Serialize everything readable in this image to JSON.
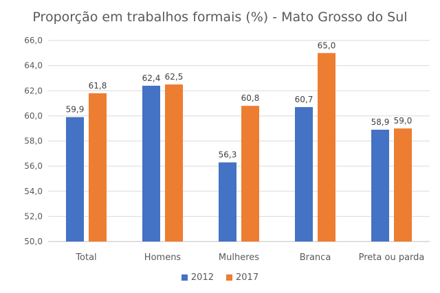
{
  "chart_data": {
    "type": "bar",
    "title": "Proporção em trabalhos formais (%) - Mato Grosso do Sul",
    "xlabel": "",
    "ylabel": "",
    "categories": [
      "Total",
      "Homens",
      "Mulheres",
      "Branca",
      "Preta ou parda"
    ],
    "series": [
      {
        "name": "2012",
        "color": "#4472C4",
        "values": [
          59.9,
          62.4,
          56.3,
          60.7,
          58.9
        ],
        "labels": [
          "59,9",
          "62,4",
          "56,3",
          "60,7",
          "58,9"
        ]
      },
      {
        "name": "2017",
        "color": "#ED7D31",
        "values": [
          61.8,
          62.5,
          60.8,
          65.0,
          59.0
        ],
        "labels": [
          "61,8",
          "62,5",
          "60,8",
          "65,0",
          "59,0"
        ]
      }
    ],
    "ylim": [
      50,
      66
    ],
    "yticks": [
      "50,0",
      "52,0",
      "54,0",
      "56,0",
      "58,0",
      "60,0",
      "62,0",
      "64,0",
      "66,0"
    ],
    "grid": true,
    "legend_position": "bottom"
  }
}
